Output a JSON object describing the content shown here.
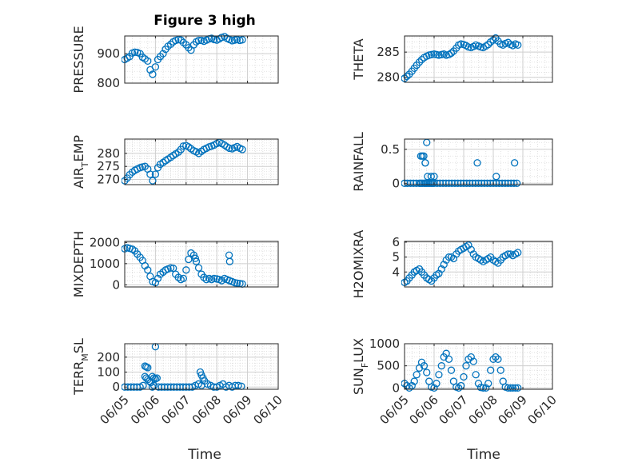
{
  "figure": {
    "title": "Figure 3 high",
    "xlabel": "Time",
    "marker_color": "#0072BD",
    "x_tick_labels": [
      "06/05",
      "06/06",
      "06/07",
      "06/08",
      "06/09",
      "06/10"
    ]
  },
  "chart_data": [
    {
      "type": "scatter",
      "id": "pressure",
      "ylabel": "PRESSURE",
      "ylabel_sub": "",
      "xlim": [
        0,
        5
      ],
      "ylim": [
        800,
        960
      ],
      "yticks": [
        800,
        900
      ],
      "x": [
        0.0,
        0.08,
        0.16,
        0.25,
        0.33,
        0.41,
        0.5,
        0.58,
        0.66,
        0.75,
        0.83,
        0.91,
        1.0,
        1.08,
        1.16,
        1.25,
        1.33,
        1.41,
        1.5,
        1.58,
        1.66,
        1.75,
        1.83,
        1.91,
        2.0,
        2.08,
        2.16,
        2.25,
        2.33,
        2.41,
        2.5,
        2.58,
        2.66,
        2.75,
        2.83,
        2.91,
        3.0,
        3.08,
        3.16,
        3.25,
        3.33,
        3.41,
        3.5,
        3.58,
        3.66,
        3.75,
        3.83
      ],
      "y": [
        880,
        885,
        890,
        902,
        905,
        904,
        900,
        888,
        882,
        875,
        845,
        830,
        855,
        880,
        890,
        900,
        915,
        925,
        932,
        940,
        945,
        948,
        946,
        938,
        930,
        920,
        912,
        930,
        940,
        945,
        945,
        942,
        946,
        950,
        952,
        948,
        946,
        950,
        955,
        958,
        952,
        948,
        944,
        946,
        948,
        945,
        947
      ]
    },
    {
      "type": "scatter",
      "id": "theta",
      "ylabel": "THETA",
      "ylabel_sub": "",
      "xlim": [
        0,
        5
      ],
      "ylim": [
        279,
        288.2
      ],
      "yticks": [
        280,
        285
      ],
      "x": [
        0.0,
        0.08,
        0.16,
        0.25,
        0.33,
        0.41,
        0.5,
        0.58,
        0.66,
        0.75,
        0.83,
        0.91,
        1.0,
        1.08,
        1.16,
        1.25,
        1.33,
        1.41,
        1.5,
        1.58,
        1.66,
        1.75,
        1.83,
        1.91,
        2.0,
        2.08,
        2.16,
        2.25,
        2.33,
        2.41,
        2.5,
        2.58,
        2.66,
        2.75,
        2.83,
        2.91,
        3.0,
        3.08,
        3.16,
        3.25,
        3.33,
        3.41,
        3.5,
        3.58,
        3.66,
        3.75,
        3.83
      ],
      "y": [
        279.8,
        280.2,
        280.6,
        281.2,
        281.8,
        282.4,
        283.0,
        283.5,
        283.9,
        284.2,
        284.4,
        284.5,
        284.6,
        284.5,
        284.4,
        284.5,
        284.6,
        284.4,
        284.5,
        284.8,
        285.2,
        285.8,
        286.4,
        286.6,
        286.5,
        286.3,
        286.0,
        285.9,
        286.1,
        286.4,
        286.2,
        286.0,
        285.9,
        286.2,
        286.5,
        287.0,
        287.4,
        287.8,
        287.2,
        286.6,
        286.4,
        286.7,
        286.9,
        286.5,
        286.3,
        286.6,
        286.4
      ]
    },
    {
      "type": "scatter",
      "id": "air_temp",
      "ylabel": "AIR",
      "ylabel_sub": "T",
      "ylabel_after": "EMP",
      "xlim": [
        0,
        5
      ],
      "ylim": [
        268,
        285.5
      ],
      "yticks": [
        270,
        275,
        280
      ],
      "x": [
        0.0,
        0.08,
        0.16,
        0.25,
        0.33,
        0.41,
        0.5,
        0.58,
        0.66,
        0.75,
        0.83,
        0.91,
        1.0,
        1.08,
        1.16,
        1.25,
        1.33,
        1.41,
        1.5,
        1.58,
        1.66,
        1.75,
        1.83,
        1.91,
        2.0,
        2.08,
        2.16,
        2.25,
        2.33,
        2.41,
        2.5,
        2.58,
        2.66,
        2.75,
        2.83,
        2.91,
        3.0,
        3.08,
        3.16,
        3.25,
        3.33,
        3.41,
        3.5,
        3.58,
        3.66,
        3.75,
        3.83
      ],
      "y": [
        269.5,
        270.5,
        271.8,
        272.8,
        273.5,
        274.0,
        274.5,
        274.8,
        275.0,
        274.0,
        272.0,
        269.5,
        272.0,
        274.5,
        275.8,
        276.5,
        277.2,
        277.8,
        278.5,
        279.2,
        279.8,
        280.5,
        281.5,
        282.8,
        283.0,
        282.5,
        281.8,
        281.0,
        280.6,
        280.0,
        280.8,
        281.5,
        282.0,
        282.5,
        282.8,
        283.2,
        283.8,
        284.2,
        283.8,
        283.2,
        282.5,
        282.0,
        281.8,
        282.2,
        282.6,
        282.0,
        281.5
      ]
    },
    {
      "type": "scatter",
      "id": "rainfall",
      "ylabel": "RAINFALL",
      "ylabel_sub": "",
      "xlim": [
        0,
        5
      ],
      "ylim": [
        -0.02,
        0.65
      ],
      "yticks": [
        0,
        0.5
      ],
      "x": [
        0.0,
        0.1,
        0.2,
        0.3,
        0.4,
        0.5,
        0.55,
        0.6,
        0.66,
        0.7,
        0.75,
        0.8,
        0.85,
        0.9,
        0.95,
        1.0,
        1.1,
        1.2,
        1.3,
        1.4,
        1.5,
        1.6,
        1.7,
        1.8,
        1.9,
        2.0,
        2.1,
        2.2,
        2.3,
        2.4,
        2.5,
        2.6,
        2.7,
        2.8,
        2.9,
        3.0,
        3.1,
        3.2,
        3.3,
        3.4,
        3.5,
        3.6,
        3.7,
        3.8,
        0.55,
        0.6,
        0.65,
        0.7,
        0.7,
        0.75,
        0.78,
        0.9,
        1.0,
        2.46,
        3.1,
        3.72
      ],
      "y": [
        0,
        0,
        0,
        0,
        0,
        0,
        0,
        0,
        0,
        0,
        0,
        0,
        0,
        0,
        0,
        0,
        0,
        0,
        0,
        0,
        0,
        0,
        0,
        0,
        0,
        0,
        0,
        0,
        0,
        0,
        0,
        0,
        0,
        0,
        0,
        0,
        0,
        0,
        0,
        0,
        0,
        0,
        0,
        0,
        0.4,
        0.4,
        0.4,
        0.3,
        0.3,
        0.6,
        0.1,
        0.1,
        0.1,
        0.3,
        0.1,
        0.3
      ]
    },
    {
      "type": "scatter",
      "id": "mixdepth",
      "ylabel": "MIXDEPTH",
      "ylabel_sub": "",
      "xlim": [
        0,
        5
      ],
      "ylim": [
        -100,
        2050
      ],
      "yticks": [
        0,
        1000,
        2000
      ],
      "x": [
        0.0,
        0.08,
        0.16,
        0.25,
        0.33,
        0.41,
        0.5,
        0.58,
        0.66,
        0.75,
        0.83,
        0.91,
        1.0,
        1.08,
        1.16,
        1.25,
        1.33,
        1.41,
        1.5,
        1.58,
        1.66,
        1.75,
        1.83,
        1.91,
        2.0,
        2.08,
        2.16,
        2.25,
        2.33,
        2.41,
        2.5,
        2.58,
        2.66,
        2.75,
        2.83,
        2.91,
        3.0,
        3.08,
        3.16,
        3.25,
        3.33,
        3.41,
        3.5,
        3.58,
        3.66,
        3.75,
        3.83,
        3.4,
        3.42,
        2.3
      ],
      "y": [
        1700,
        1750,
        1720,
        1680,
        1600,
        1450,
        1300,
        1150,
        900,
        700,
        400,
        150,
        100,
        300,
        500,
        600,
        700,
        750,
        800,
        780,
        500,
        350,
        250,
        300,
        700,
        1200,
        1500,
        1400,
        1100,
        800,
        500,
        350,
        250,
        300,
        250,
        300,
        280,
        250,
        200,
        300,
        250,
        200,
        150,
        100,
        80,
        60,
        40,
        1400,
        1100,
        1250
      ]
    },
    {
      "type": "scatter",
      "id": "h2omixra",
      "ylabel": "H2OMIXRA",
      "ylabel_sub": "",
      "xlim": [
        0,
        5
      ],
      "ylim": [
        3.0,
        6.05
      ],
      "yticks": [
        4,
        5,
        6
      ],
      "x": [
        0.0,
        0.08,
        0.16,
        0.25,
        0.33,
        0.41,
        0.5,
        0.58,
        0.66,
        0.75,
        0.83,
        0.91,
        1.0,
        1.08,
        1.16,
        1.25,
        1.33,
        1.41,
        1.5,
        1.58,
        1.66,
        1.75,
        1.83,
        1.91,
        2.0,
        2.08,
        2.16,
        2.25,
        2.33,
        2.41,
        2.5,
        2.58,
        2.66,
        2.75,
        2.83,
        2.91,
        3.0,
        3.08,
        3.16,
        3.25,
        3.33,
        3.41,
        3.5,
        3.58,
        3.66,
        3.75,
        3.83
      ],
      "y": [
        3.3,
        3.4,
        3.6,
        3.8,
        4.0,
        4.1,
        4.2,
        4.0,
        3.8,
        3.6,
        3.5,
        3.4,
        3.6,
        3.8,
        3.9,
        4.2,
        4.5,
        4.8,
        5.0,
        5.0,
        4.9,
        5.2,
        5.4,
        5.5,
        5.6,
        5.7,
        5.8,
        5.5,
        5.2,
        5.0,
        4.9,
        4.8,
        4.7,
        4.8,
        4.9,
        5.0,
        4.8,
        4.7,
        4.6,
        4.8,
        5.0,
        5.1,
        5.2,
        5.2,
        5.1,
        5.2,
        5.3
      ]
    },
    {
      "type": "scatter",
      "id": "terr_msl",
      "ylabel": "TERR",
      "ylabel_sub": "M",
      "ylabel_after": "SL",
      "xlim": [
        0,
        5
      ],
      "ylim": [
        -15,
        290
      ],
      "yticks": [
        0,
        100,
        200
      ],
      "x": [
        0.0,
        0.1,
        0.2,
        0.3,
        0.4,
        0.5,
        0.6,
        0.66,
        0.7,
        0.75,
        0.8,
        0.85,
        0.9,
        0.95,
        1.0,
        1.05,
        1.1,
        1.2,
        1.3,
        1.4,
        1.5,
        1.6,
        1.7,
        1.8,
        1.9,
        2.0,
        2.1,
        2.2,
        2.3,
        2.4,
        2.46,
        2.5,
        2.55,
        2.6,
        2.7,
        2.8,
        2.9,
        3.0,
        3.1,
        3.2,
        3.3,
        3.4,
        3.5,
        3.6,
        3.7,
        3.8,
        0.66,
        0.7,
        0.75,
        0.9,
        0.95,
        1.0,
        2.5
      ],
      "y": [
        0,
        0,
        0,
        0,
        0,
        0,
        10,
        70,
        60,
        50,
        40,
        30,
        0,
        10,
        270,
        60,
        0,
        0,
        0,
        0,
        0,
        0,
        0,
        0,
        0,
        0,
        0,
        0,
        10,
        20,
        100,
        80,
        60,
        40,
        20,
        10,
        0,
        0,
        10,
        20,
        0,
        10,
        0,
        10,
        10,
        5,
        140,
        135,
        130,
        70,
        60,
        55,
        10
      ]
    },
    {
      "type": "scatter",
      "id": "sun_flux",
      "ylabel": "SUN",
      "ylabel_sub": "F",
      "ylabel_after": "LUX",
      "xlim": [
        0,
        5
      ],
      "ylim": [
        -30,
        1000
      ],
      "yticks": [
        0,
        500,
        1000
      ],
      "x": [
        0.0,
        0.08,
        0.16,
        0.25,
        0.33,
        0.41,
        0.5,
        0.58,
        0.66,
        0.75,
        0.83,
        0.91,
        1.0,
        1.08,
        1.16,
        1.25,
        1.33,
        1.41,
        1.5,
        1.58,
        1.66,
        1.75,
        1.83,
        1.91,
        2.0,
        2.08,
        2.16,
        2.25,
        2.33,
        2.41,
        2.5,
        2.58,
        2.66,
        2.75,
        2.83,
        2.91,
        3.0,
        3.08,
        3.16,
        3.25,
        3.33,
        3.41,
        3.5,
        3.58,
        3.66,
        3.75,
        3.83
      ],
      "y": [
        100,
        50,
        0,
        50,
        150,
        300,
        450,
        580,
        500,
        350,
        150,
        20,
        0,
        100,
        300,
        500,
        700,
        780,
        650,
        400,
        150,
        20,
        0,
        50,
        250,
        500,
        650,
        700,
        600,
        300,
        100,
        10,
        0,
        0,
        100,
        400,
        650,
        700,
        650,
        400,
        150,
        20,
        0,
        0,
        0,
        0,
        0
      ]
    }
  ]
}
